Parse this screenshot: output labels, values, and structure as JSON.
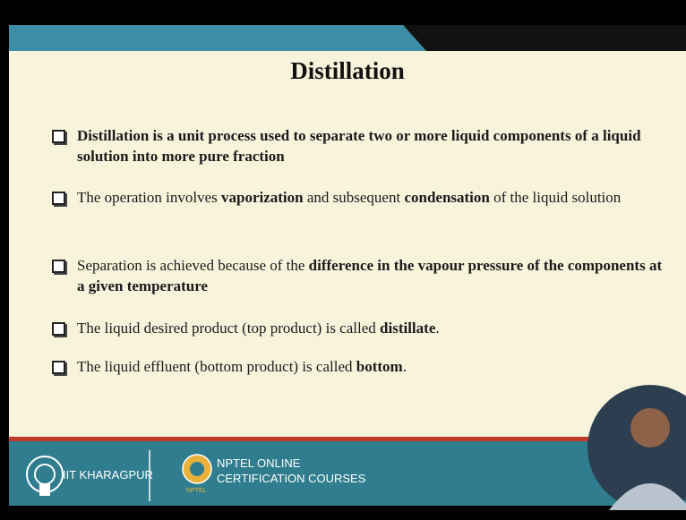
{
  "title": "Distillation",
  "bullets": [
    {
      "segments": [
        {
          "text": "Distillation is a unit process used to separate two or more liquid components of a liquid solution into more pure fraction",
          "bold": true
        }
      ]
    },
    {
      "segments": [
        {
          "text": "The operation involves ",
          "bold": false
        },
        {
          "text": "vaporization",
          "bold": true
        },
        {
          "text": " and subsequent ",
          "bold": false
        },
        {
          "text": "condensation",
          "bold": true
        },
        {
          "text": " of the liquid solution",
          "bold": false
        }
      ]
    },
    {
      "segments": [
        {
          "text": "Separation is achieved because of the ",
          "bold": false
        },
        {
          "text": "difference in the vapour pressure of the components at a given temperature",
          "bold": true
        }
      ]
    },
    {
      "segments": [
        {
          "text": "The liquid desired product (top product) is called ",
          "bold": false
        },
        {
          "text": "distillate",
          "bold": true
        },
        {
          "text": ".",
          "bold": false
        }
      ]
    },
    {
      "segments": [
        {
          "text": "The liquid effluent (bottom product) is called ",
          "bold": false
        },
        {
          "text": "bottom",
          "bold": true
        },
        {
          "text": ".",
          "bold": false
        }
      ]
    }
  ],
  "footer": {
    "institute": "IIT KHARAGPUR",
    "course_line1": "NPTEL ONLINE",
    "course_line2": "CERTIFICATION COURSES",
    "logo_text": "NPTEL"
  }
}
